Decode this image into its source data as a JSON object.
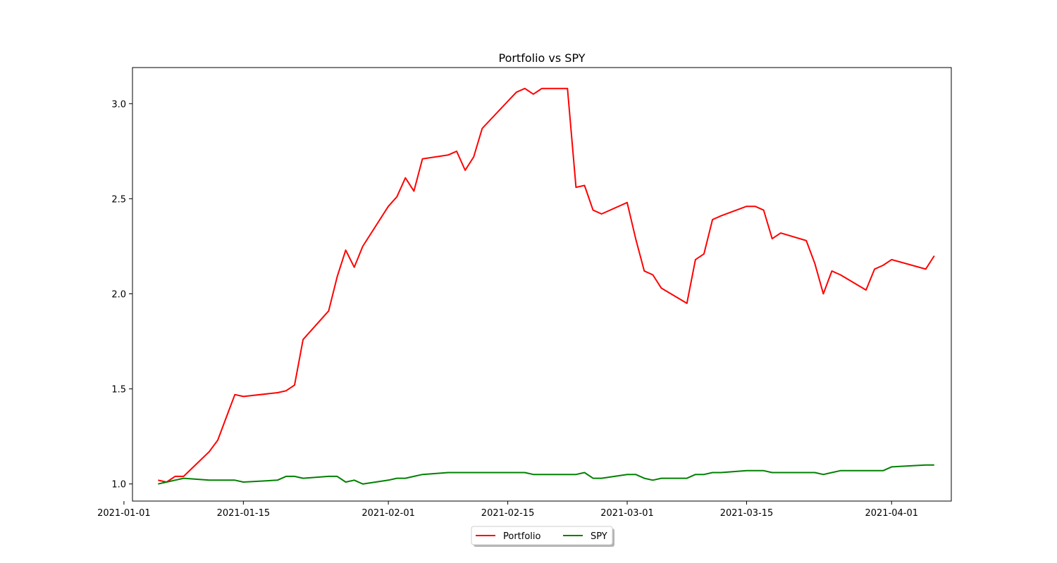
{
  "chart_data": {
    "type": "line",
    "title": "Portfolio vs SPY",
    "xlabel": "",
    "ylabel": "",
    "xlim": [
      "2021-01-02",
      "2021-04-08"
    ],
    "ylim": [
      0.91,
      3.19
    ],
    "x_ticks": [
      "2021-01-01",
      "2021-01-15",
      "2021-02-01",
      "2021-02-15",
      "2021-03-01",
      "2021-03-15",
      "2021-04-01"
    ],
    "y_ticks": [
      1.0,
      1.5,
      2.0,
      2.5,
      3.0
    ],
    "y_tick_labels": [
      "1.0",
      "1.5",
      "2.0",
      "2.5",
      "3.0"
    ],
    "grid": false,
    "legend": {
      "placement": "bottom-center",
      "columns": 2
    },
    "series": [
      {
        "name": "Portfolio",
        "color": "#ff0000",
        "points": [
          [
            "2021-01-05",
            1.02
          ],
          [
            "2021-01-06",
            1.01
          ],
          [
            "2021-01-07",
            1.04
          ],
          [
            "2021-01-08",
            1.04
          ],
          [
            "2021-01-11",
            1.17
          ],
          [
            "2021-01-12",
            1.23
          ],
          [
            "2021-01-13",
            1.35
          ],
          [
            "2021-01-14",
            1.47
          ],
          [
            "2021-01-15",
            1.46
          ],
          [
            "2021-01-19",
            1.48
          ],
          [
            "2021-01-20",
            1.49
          ],
          [
            "2021-01-21",
            1.52
          ],
          [
            "2021-01-22",
            1.76
          ],
          [
            "2021-01-25",
            1.91
          ],
          [
            "2021-01-26",
            2.09
          ],
          [
            "2021-01-27",
            2.23
          ],
          [
            "2021-01-28",
            2.14
          ],
          [
            "2021-01-29",
            2.25
          ],
          [
            "2021-02-01",
            2.46
          ],
          [
            "2021-02-02",
            2.51
          ],
          [
            "2021-02-03",
            2.61
          ],
          [
            "2021-02-04",
            2.54
          ],
          [
            "2021-02-05",
            2.71
          ],
          [
            "2021-02-08",
            2.73
          ],
          [
            "2021-02-09",
            2.75
          ],
          [
            "2021-02-10",
            2.65
          ],
          [
            "2021-02-11",
            2.72
          ],
          [
            "2021-02-12",
            2.87
          ],
          [
            "2021-02-16",
            3.06
          ],
          [
            "2021-02-17",
            3.08
          ],
          [
            "2021-02-18",
            3.05
          ],
          [
            "2021-02-19",
            3.08
          ],
          [
            "2021-02-22",
            3.08
          ],
          [
            "2021-02-23",
            2.56
          ],
          [
            "2021-02-24",
            2.57
          ],
          [
            "2021-02-25",
            2.44
          ],
          [
            "2021-02-26",
            2.42
          ],
          [
            "2021-03-01",
            2.48
          ],
          [
            "2021-03-02",
            2.29
          ],
          [
            "2021-03-03",
            2.12
          ],
          [
            "2021-03-04",
            2.1
          ],
          [
            "2021-03-05",
            2.03
          ],
          [
            "2021-03-08",
            1.95
          ],
          [
            "2021-03-09",
            2.18
          ],
          [
            "2021-03-10",
            2.21
          ],
          [
            "2021-03-11",
            2.39
          ],
          [
            "2021-03-12",
            2.41
          ],
          [
            "2021-03-15",
            2.46
          ],
          [
            "2021-03-16",
            2.46
          ],
          [
            "2021-03-17",
            2.44
          ],
          [
            "2021-03-18",
            2.29
          ],
          [
            "2021-03-19",
            2.32
          ],
          [
            "2021-03-22",
            2.28
          ],
          [
            "2021-03-23",
            2.16
          ],
          [
            "2021-03-24",
            2.0
          ],
          [
            "2021-03-25",
            2.12
          ],
          [
            "2021-03-26",
            2.1
          ],
          [
            "2021-03-29",
            2.02
          ],
          [
            "2021-03-30",
            2.13
          ],
          [
            "2021-03-31",
            2.15
          ],
          [
            "2021-04-01",
            2.18
          ],
          [
            "2021-04-05",
            2.13
          ],
          [
            "2021-04-06",
            2.2
          ]
        ]
      },
      {
        "name": "SPY",
        "color": "#008000",
        "points": [
          [
            "2021-01-05",
            1.0
          ],
          [
            "2021-01-06",
            1.01
          ],
          [
            "2021-01-07",
            1.02
          ],
          [
            "2021-01-08",
            1.03
          ],
          [
            "2021-01-11",
            1.02
          ],
          [
            "2021-01-12",
            1.02
          ],
          [
            "2021-01-13",
            1.02
          ],
          [
            "2021-01-14",
            1.02
          ],
          [
            "2021-01-15",
            1.01
          ],
          [
            "2021-01-19",
            1.02
          ],
          [
            "2021-01-20",
            1.04
          ],
          [
            "2021-01-21",
            1.04
          ],
          [
            "2021-01-22",
            1.03
          ],
          [
            "2021-01-25",
            1.04
          ],
          [
            "2021-01-26",
            1.04
          ],
          [
            "2021-01-27",
            1.01
          ],
          [
            "2021-01-28",
            1.02
          ],
          [
            "2021-01-29",
            1.0
          ],
          [
            "2021-02-01",
            1.02
          ],
          [
            "2021-02-02",
            1.03
          ],
          [
            "2021-02-03",
            1.03
          ],
          [
            "2021-02-04",
            1.04
          ],
          [
            "2021-02-05",
            1.05
          ],
          [
            "2021-02-08",
            1.06
          ],
          [
            "2021-02-09",
            1.06
          ],
          [
            "2021-02-10",
            1.06
          ],
          [
            "2021-02-11",
            1.06
          ],
          [
            "2021-02-12",
            1.06
          ],
          [
            "2021-02-16",
            1.06
          ],
          [
            "2021-02-17",
            1.06
          ],
          [
            "2021-02-18",
            1.05
          ],
          [
            "2021-02-19",
            1.05
          ],
          [
            "2021-02-22",
            1.05
          ],
          [
            "2021-02-23",
            1.05
          ],
          [
            "2021-02-24",
            1.06
          ],
          [
            "2021-02-25",
            1.03
          ],
          [
            "2021-02-26",
            1.03
          ],
          [
            "2021-03-01",
            1.05
          ],
          [
            "2021-03-02",
            1.05
          ],
          [
            "2021-03-03",
            1.03
          ],
          [
            "2021-03-04",
            1.02
          ],
          [
            "2021-03-05",
            1.03
          ],
          [
            "2021-03-08",
            1.03
          ],
          [
            "2021-03-09",
            1.05
          ],
          [
            "2021-03-10",
            1.05
          ],
          [
            "2021-03-11",
            1.06
          ],
          [
            "2021-03-12",
            1.06
          ],
          [
            "2021-03-15",
            1.07
          ],
          [
            "2021-03-16",
            1.07
          ],
          [
            "2021-03-17",
            1.07
          ],
          [
            "2021-03-18",
            1.06
          ],
          [
            "2021-03-19",
            1.06
          ],
          [
            "2021-03-22",
            1.06
          ],
          [
            "2021-03-23",
            1.06
          ],
          [
            "2021-03-24",
            1.05
          ],
          [
            "2021-03-25",
            1.06
          ],
          [
            "2021-03-26",
            1.07
          ],
          [
            "2021-03-29",
            1.07
          ],
          [
            "2021-03-30",
            1.07
          ],
          [
            "2021-03-31",
            1.07
          ],
          [
            "2021-04-01",
            1.09
          ],
          [
            "2021-04-05",
            1.1
          ],
          [
            "2021-04-06",
            1.1
          ]
        ]
      }
    ]
  }
}
